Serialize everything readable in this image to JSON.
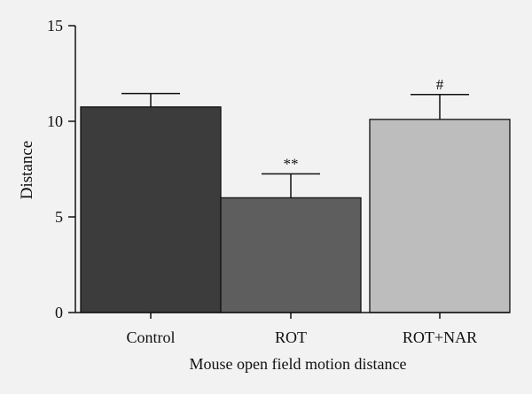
{
  "chart_data": {
    "type": "bar",
    "title": "",
    "xlabel": "Mouse open field motion distance",
    "ylabel": "Distance",
    "ylim": [
      0,
      15
    ],
    "yticks": [
      0,
      5,
      10,
      15
    ],
    "categories": [
      "Control",
      "ROT",
      "ROT+NAR"
    ],
    "values": [
      10.75,
      6.0,
      10.1
    ],
    "errors": [
      0.7,
      1.25,
      1.3
    ],
    "annotations": [
      "",
      "**",
      "#"
    ],
    "colors": [
      "#3c3c3c",
      "#5e5e5e",
      "#bdbdbd"
    ],
    "grid": false,
    "legend": "none"
  }
}
